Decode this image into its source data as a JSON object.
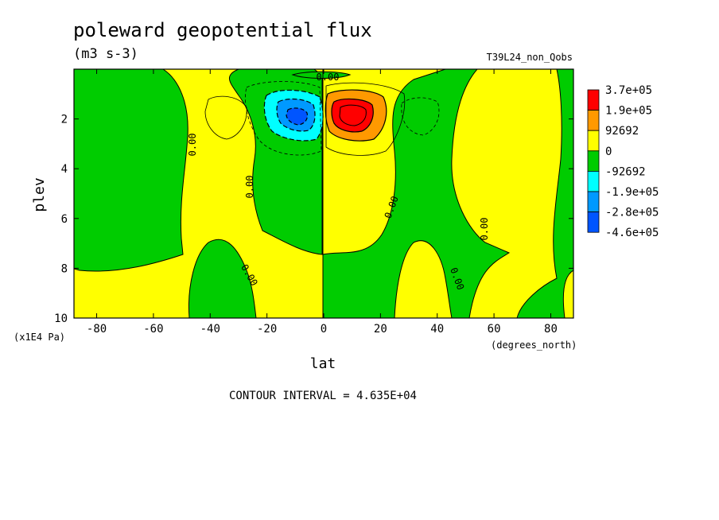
{
  "chart_data": {
    "type": "heatmap",
    "title": "poleward geopotential flux",
    "units": "(m3 s-3)",
    "run_label": "T39L24_non_Qobs",
    "xlabel": "lat",
    "x_units": "(degrees_north)",
    "ylabel": "plev",
    "y_units": "(x1E4 Pa)",
    "xlim": [
      -88,
      88
    ],
    "ylim": [
      10,
      0
    ],
    "x_ticks": [
      "-80",
      "-60",
      "-40",
      "-20",
      "0",
      "20",
      "40",
      "60",
      "80"
    ],
    "y_ticks": [
      "2",
      "4",
      "6",
      "8",
      "10"
    ],
    "x_tick_values": [
      -80,
      -60,
      -40,
      -20,
      0,
      20,
      40,
      60,
      80
    ],
    "y_tick_values": [
      2,
      4,
      6,
      8,
      10
    ],
    "contour_label": "0.00",
    "contour_interval_text": "CONTOUR INTERVAL = 4.635E+04",
    "legend": {
      "labels": [
        "3.7e+05",
        "1.9e+05",
        "92692",
        "0",
        "-92692",
        "-1.9e+05",
        "-2.8e+05",
        "-4.6e+05"
      ],
      "colors": [
        "#ff0000",
        "#ff9900",
        "#ffff00",
        "#00cc00",
        "#00ffff",
        "#0099ff",
        "#0055ff"
      ]
    },
    "features": [
      {
        "name": "positive maximum",
        "lat": 9,
        "plev": 2,
        "approx_value": 370000
      },
      {
        "name": "negative minimum",
        "lat": -9,
        "plev": 2,
        "approx_value": -460000
      }
    ]
  }
}
